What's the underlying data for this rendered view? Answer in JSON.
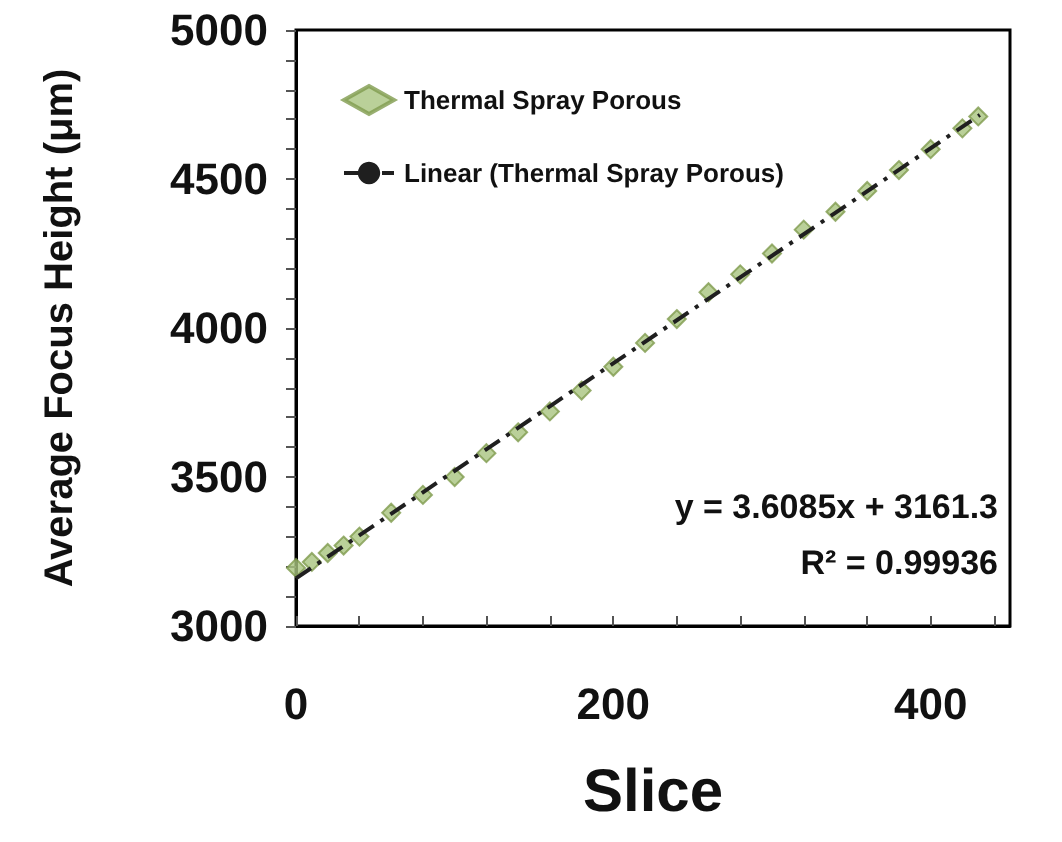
{
  "chart_data": {
    "type": "scatter",
    "xlabel": "Slice",
    "ylabel": "Average Focus Height (μm)",
    "xlim": [
      0,
      450
    ],
    "ylim": [
      3000,
      5000
    ],
    "xticks": [
      0,
      {
        "value": 40,
        "label": null
      },
      {
        "value": 80,
        "label": null
      },
      {
        "value": 120,
        "label": null
      },
      {
        "value": 160,
        "label": null
      },
      200,
      {
        "value": 240,
        "label": null
      },
      {
        "value": 280,
        "label": null
      },
      {
        "value": 320,
        "label": null
      },
      {
        "value": 360,
        "label": null
      },
      400,
      {
        "value": 440,
        "label": null
      }
    ],
    "yticks": [
      3000,
      {
        "value": 3100,
        "label": null
      },
      {
        "value": 3200,
        "label": null
      },
      {
        "value": 3300,
        "label": null
      },
      {
        "value": 3400,
        "label": null
      },
      3500,
      {
        "value": 3600,
        "label": null
      },
      {
        "value": 3700,
        "label": null
      },
      {
        "value": 3800,
        "label": null
      },
      {
        "value": 3900,
        "label": null
      },
      4000,
      {
        "value": 4100,
        "label": null
      },
      {
        "value": 4200,
        "label": null
      },
      {
        "value": 4300,
        "label": null
      },
      {
        "value": 4400,
        "label": null
      },
      4500,
      {
        "value": 4600,
        "label": null
      },
      {
        "value": 4700,
        "label": null
      },
      {
        "value": 4800,
        "label": null
      },
      {
        "value": 4900,
        "label": null
      },
      5000
    ],
    "legend": "top left",
    "series": [
      {
        "name": "Thermal Spray Porous",
        "color": "#a9c47f",
        "marker": "diamond",
        "x": [
          0,
          10,
          20,
          30,
          40,
          60,
          80,
          100,
          120,
          140,
          160,
          180,
          200,
          220,
          240,
          260,
          280,
          300,
          320,
          340,
          360,
          380,
          400,
          420,
          430
        ],
        "values": [
          3195,
          3215,
          3245,
          3270,
          3300,
          3380,
          3440,
          3500,
          3580,
          3650,
          3720,
          3790,
          3870,
          3950,
          4030,
          4120,
          4180,
          4250,
          4330,
          4390,
          4460,
          4530,
          4600,
          4670,
          4710
        ]
      },
      {
        "name": "Linear (Thermal Spray Porous)",
        "type": "line",
        "color": "#1f1f1f",
        "marker": "none",
        "line_style": "dashed",
        "x": [
          0,
          431
        ],
        "values": [
          3160,
          4715
        ]
      }
    ],
    "annotations": [
      "y = 3.6085x + 3161.3",
      "R² = 0.99936"
    ]
  }
}
